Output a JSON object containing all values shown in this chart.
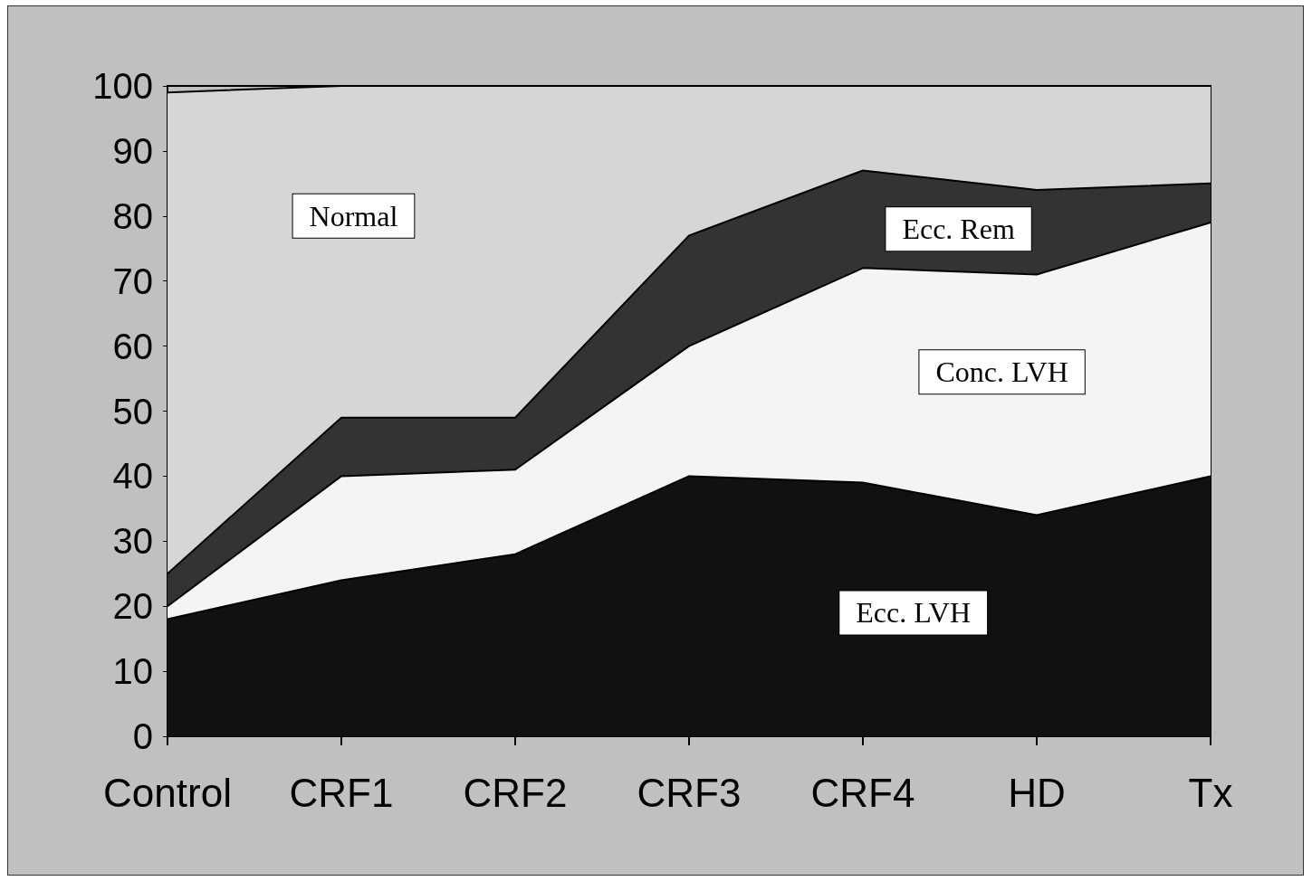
{
  "chart_data": {
    "type": "area",
    "stacked": true,
    "categories": [
      "Control",
      "CRF1",
      "CRF2",
      "CRF3",
      "CRF4",
      "HD",
      "Tx"
    ],
    "series": [
      {
        "name": "Ecc. LVH",
        "color": "#111111",
        "values": [
          18,
          24,
          28,
          40,
          39,
          34,
          40
        ]
      },
      {
        "name": "Conc. LVH",
        "color": "#f4f4f4",
        "values": [
          2,
          16,
          13,
          20,
          33,
          37,
          39
        ]
      },
      {
        "name": "Ecc. Rem",
        "color": "#333333",
        "values": [
          5,
          9,
          8,
          17,
          15,
          13,
          6
        ]
      },
      {
        "name": "Normal",
        "color": "#d6d6d6",
        "values": [
          74,
          51,
          51,
          23,
          13,
          16,
          15
        ]
      }
    ],
    "ylim": [
      0,
      100
    ],
    "yticks": [
      0,
      10,
      20,
      30,
      40,
      50,
      60,
      70,
      80,
      90,
      100
    ],
    "grid": false,
    "legend": false
  }
}
